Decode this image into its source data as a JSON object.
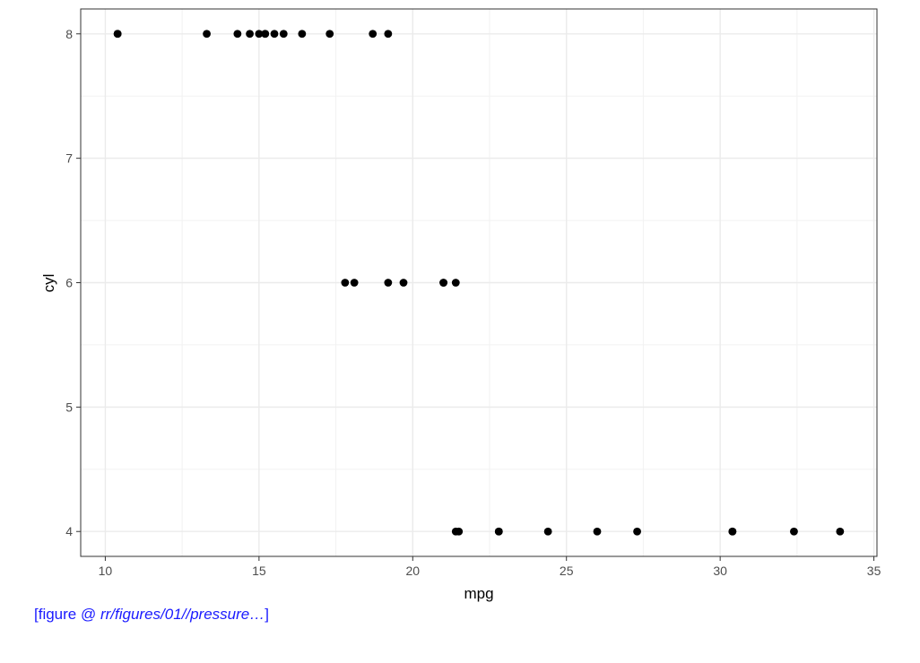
{
  "chart_data": {
    "type": "scatter",
    "title": "",
    "xlabel": "mpg",
    "ylabel": "cyl",
    "xlim": [
      9.2,
      35.1
    ],
    "ylim": [
      3.8,
      8.2
    ],
    "x_ticks": [
      10,
      15,
      20,
      25,
      30,
      35
    ],
    "y_ticks": [
      4,
      5,
      6,
      7,
      8
    ],
    "x_tick_labels": [
      "10",
      "15",
      "20",
      "25",
      "30",
      "35"
    ],
    "y_tick_labels": [
      "4",
      "5",
      "6",
      "7",
      "8"
    ],
    "grid": true,
    "theme": "bw",
    "point_color": "#000000",
    "points": [
      {
        "x": 10.4,
        "y": 8
      },
      {
        "x": 10.4,
        "y": 8
      },
      {
        "x": 13.3,
        "y": 8
      },
      {
        "x": 14.3,
        "y": 8
      },
      {
        "x": 14.7,
        "y": 8
      },
      {
        "x": 15.0,
        "y": 8
      },
      {
        "x": 15.2,
        "y": 8
      },
      {
        "x": 15.2,
        "y": 8
      },
      {
        "x": 15.5,
        "y": 8
      },
      {
        "x": 15.8,
        "y": 8
      },
      {
        "x": 16.4,
        "y": 8
      },
      {
        "x": 17.3,
        "y": 8
      },
      {
        "x": 18.7,
        "y": 8
      },
      {
        "x": 19.2,
        "y": 8
      },
      {
        "x": 17.8,
        "y": 6
      },
      {
        "x": 18.1,
        "y": 6
      },
      {
        "x": 19.2,
        "y": 6
      },
      {
        "x": 19.7,
        "y": 6
      },
      {
        "x": 21.0,
        "y": 6
      },
      {
        "x": 21.0,
        "y": 6
      },
      {
        "x": 21.4,
        "y": 6
      },
      {
        "x": 21.4,
        "y": 4
      },
      {
        "x": 21.5,
        "y": 4
      },
      {
        "x": 22.8,
        "y": 4
      },
      {
        "x": 22.8,
        "y": 4
      },
      {
        "x": 24.4,
        "y": 4
      },
      {
        "x": 26.0,
        "y": 4
      },
      {
        "x": 27.3,
        "y": 4
      },
      {
        "x": 30.4,
        "y": 4
      },
      {
        "x": 30.4,
        "y": 4
      },
      {
        "x": 32.4,
        "y": 4
      },
      {
        "x": 33.9,
        "y": 4
      }
    ]
  },
  "caption": {
    "prefix": "[figure @ ",
    "path": "rr/figures/01//pressure…",
    "suffix": "]"
  }
}
